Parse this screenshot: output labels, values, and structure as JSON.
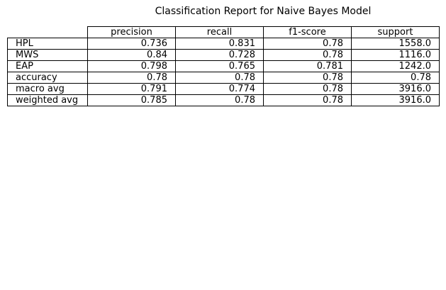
{
  "chart_data": {
    "type": "table",
    "title": "Classification Report for Naive Bayes Model",
    "columns": [
      "precision",
      "recall",
      "f1-score",
      "support"
    ],
    "rows": [
      {
        "label": "HPL",
        "values": [
          "0.736",
          "0.831",
          "0.78",
          "1558.0"
        ]
      },
      {
        "label": "MWS",
        "values": [
          "0.84",
          "0.728",
          "0.78",
          "1116.0"
        ]
      },
      {
        "label": "EAP",
        "values": [
          "0.798",
          "0.765",
          "0.781",
          "1242.0"
        ]
      },
      {
        "label": "accuracy",
        "values": [
          "0.78",
          "0.78",
          "0.78",
          "0.78"
        ]
      },
      {
        "label": "macro avg",
        "values": [
          "0.791",
          "0.774",
          "0.78",
          "3916.0"
        ]
      },
      {
        "label": "weighted avg",
        "values": [
          "0.785",
          "0.78",
          "0.78",
          "3916.0"
        ]
      }
    ]
  }
}
